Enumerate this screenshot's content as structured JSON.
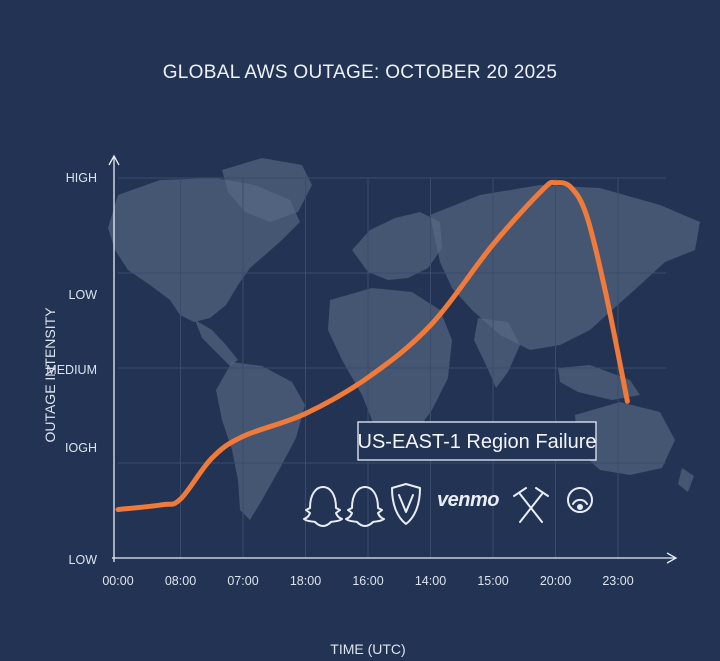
{
  "chart_data": {
    "type": "line",
    "title": "GLOBAL AWS OUTAGE: OCTOBER 20 2025",
    "xlabel": "TIME (UTC)",
    "ylabel": "OUTAGE INTENSITY",
    "x_ticks": [
      "00:00",
      "08:00",
      "07:00",
      "18:00",
      "16:00",
      "14:00",
      "15:00",
      "20:00",
      "23:00"
    ],
    "y_ticks": [
      "LOW",
      "IOGH",
      "MEDIUM",
      "LOW",
      "HIGH"
    ],
    "ylim": [
      0,
      4
    ],
    "series": [
      {
        "color": "#f07a3a",
        "points": [
          [
            0.0,
            0.51
          ],
          [
            0.7,
            0.56
          ],
          [
            1.0,
            0.62
          ],
          [
            1.5,
            1.05
          ],
          [
            2.0,
            1.28
          ],
          [
            3.0,
            1.52
          ],
          [
            4.0,
            1.9
          ],
          [
            5.0,
            2.45
          ],
          [
            6.0,
            3.3
          ],
          [
            6.8,
            3.88
          ],
          [
            7.0,
            3.95
          ],
          [
            7.25,
            3.9
          ],
          [
            7.5,
            3.6
          ],
          [
            7.8,
            2.8
          ],
          [
            8.15,
            1.65
          ]
        ]
      }
    ],
    "annotation": "US-EAST-1 Region Failure",
    "brand_label": "venmo",
    "icons": [
      "snapchat-ghost-icon",
      "snapchat-ghost-icon",
      "shield-v-icon",
      "venmo-wordmark",
      "crossed-hammers-icon",
      "signal-ring-icon"
    ],
    "grid": true,
    "background_map": true
  },
  "colors": {
    "background": "#223353",
    "line": "#f07a3a",
    "land": "#5b6c88",
    "axis": "#e8edf5"
  }
}
